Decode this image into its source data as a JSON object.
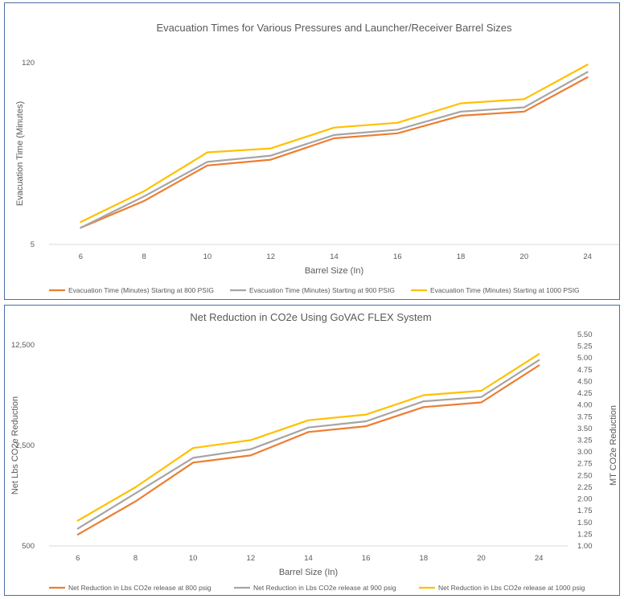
{
  "chart_data": [
    {
      "type": "line",
      "title": "Evacuation Times for Various Pressures and Launcher/Receiver Barrel Sizes",
      "xlabel": "Barrel Size (In)",
      "ylabel": "Evacuation Time (Minutes)",
      "yscale": "log",
      "ylim": [
        5,
        120
      ],
      "y_ticks": [
        "5",
        "120"
      ],
      "categories": [
        "6",
        "8",
        "10",
        "12",
        "14",
        "16",
        "18",
        "20",
        "24"
      ],
      "grid": false,
      "legend": "bottom",
      "series": [
        {
          "name": "Evacuation Time (Minutes) Starting at 800 PSIG",
          "color": "#ED7D31",
          "values": [
            6.7,
            10.7,
            19.9,
            22.0,
            32.0,
            34.9,
            47.5,
            51.0,
            93.0
          ]
        },
        {
          "name": "Evacuation Time (Minutes) Starting at 900 PSIG",
          "color": "#A5A5A5",
          "values": [
            6.7,
            11.6,
            21.2,
            23.6,
            33.9,
            37.2,
            51.0,
            55.0,
            102.0
          ]
        },
        {
          "name": "Evacuation Time (Minutes) Starting at 1000 PSIG",
          "color": "#FFC000",
          "values": [
            7.4,
            12.7,
            25.0,
            26.8,
            38.6,
            42.0,
            59.0,
            63.5,
            116.0
          ]
        }
      ]
    },
    {
      "type": "line",
      "title": "Net Reduction in CO2e Using GoVAC FLEX System",
      "xlabel": "Barrel Size (In)",
      "ylabel": "Net Lbs CO2e Reduction",
      "y2label": "MT CO2e Reduction",
      "yscale": "log",
      "ylim": [
        500,
        12500
      ],
      "y_ticks": [
        "500",
        "2,500",
        "12,500"
      ],
      "y2lim": [
        1.0,
        5.5
      ],
      "y2_ticks": [
        "1.00",
        "1.25",
        "1.50",
        "1.75",
        "2.00",
        "2.25",
        "2.50",
        "2.75",
        "3.00",
        "3.25",
        "3.50",
        "3.75",
        "4.00",
        "4.25",
        "4.50",
        "4.75",
        "5.00",
        "5.25",
        "5.50"
      ],
      "categories": [
        "6",
        "8",
        "10",
        "12",
        "14",
        "16",
        "18",
        "20",
        "24"
      ],
      "grid": false,
      "legend": "bottom",
      "series": [
        {
          "name": "Net Reduction in Lbs CO2e release at 800 psig",
          "color": "#ED7D31",
          "values": [
            600,
            1020,
            1900,
            2130,
            3100,
            3400,
            4620,
            4980,
            9000
          ]
        },
        {
          "name": "Net Reduction in Lbs CO2e release at 900 psig",
          "color": "#A5A5A5",
          "values": [
            660,
            1160,
            2050,
            2350,
            3330,
            3680,
            5070,
            5430,
            9800
          ]
        },
        {
          "name": "Net Reduction in Lbs CO2e release at 1000 psig",
          "color": "#FFC000",
          "values": [
            750,
            1280,
            2400,
            2720,
            3740,
            4100,
            5590,
            6000,
            10800
          ]
        }
      ]
    }
  ]
}
